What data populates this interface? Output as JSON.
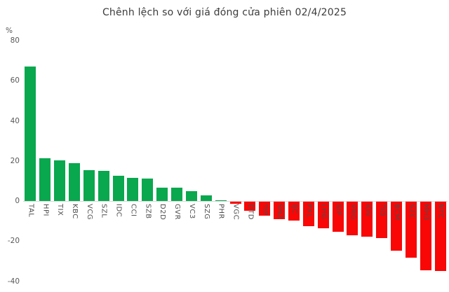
{
  "title": "Chênh lệch so với giá đóng cửa phiên 02/4/2025",
  "y_axis": {
    "unit": "%",
    "ticks": [
      80,
      60,
      40,
      20,
      0,
      -20,
      -40
    ],
    "min": -40,
    "max": 80
  },
  "colors": {
    "positive": "#09a74e",
    "negative": "#f90606",
    "axis_line": "#d8d8d8",
    "title_text": "#3c3c3c",
    "tick_text": "#595959",
    "label_text": "#4d4d4d"
  },
  "chart_data": {
    "type": "bar",
    "title": "Chênh lệch so với giá đóng cửa phiên 02/4/2025",
    "xlabel": "",
    "ylabel": "%",
    "ylim": [
      -40,
      80
    ],
    "grid": false,
    "legend": false,
    "categories": [
      "TAL",
      "HPI",
      "TIX",
      "KBC",
      "VCG",
      "SZL",
      "IDC",
      "CCI",
      "SZB",
      "D2D",
      "GVR",
      "VC3",
      "SZG",
      "PHR",
      "VGC",
      "DTD",
      "TIP",
      "SNZ",
      "IJC",
      "PXL",
      "LHG",
      "SIP",
      "VRG",
      "IDV",
      "TID",
      "BCM",
      "SZC",
      "MH3",
      "NTC"
    ],
    "values": [
      67.0,
      21.4,
      20.2,
      18.9,
      15.3,
      15.0,
      12.7,
      11.4,
      11.1,
      6.7,
      6.5,
      4.8,
      2.7,
      0.5,
      -1.1,
      -4.6,
      -6.9,
      -8.7,
      -9.3,
      -12.2,
      -13.3,
      -14.9,
      -16.7,
      -17.5,
      -18.1,
      -24.6,
      -27.8,
      -34.1,
      -34.7
    ]
  }
}
